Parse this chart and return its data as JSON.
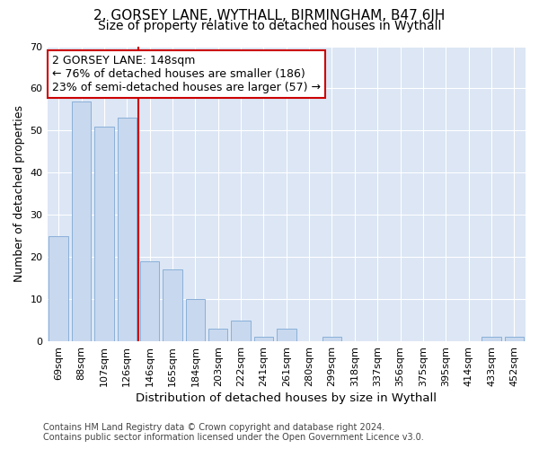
{
  "title": "2, GORSEY LANE, WYTHALL, BIRMINGHAM, B47 6JH",
  "subtitle": "Size of property relative to detached houses in Wythall",
  "xlabel": "Distribution of detached houses by size in Wythall",
  "ylabel": "Number of detached properties",
  "categories": [
    "69sqm",
    "88sqm",
    "107sqm",
    "126sqm",
    "146sqm",
    "165sqm",
    "184sqm",
    "203sqm",
    "222sqm",
    "241sqm",
    "261sqm",
    "280sqm",
    "299sqm",
    "318sqm",
    "337sqm",
    "356sqm",
    "375sqm",
    "395sqm",
    "414sqm",
    "433sqm",
    "452sqm"
  ],
  "values": [
    25,
    57,
    51,
    53,
    19,
    17,
    10,
    3,
    5,
    1,
    3,
    0,
    1,
    0,
    0,
    0,
    0,
    0,
    0,
    1,
    1
  ],
  "bar_color": "#c8d8ee",
  "bar_edge_color": "#8ab0d8",
  "vline_x_index": 4,
  "vline_color": "#cc0000",
  "annotation_text": "2 GORSEY LANE: 148sqm\n← 76% of detached houses are smaller (186)\n23% of semi-detached houses are larger (57) →",
  "annotation_box_color": "#ffffff",
  "annotation_box_edge_color": "#cc0000",
  "ylim": [
    0,
    70
  ],
  "yticks": [
    0,
    10,
    20,
    30,
    40,
    50,
    60,
    70
  ],
  "plot_bg_color": "#dce6f5",
  "fig_bg_color": "#ffffff",
  "grid_color": "#ffffff",
  "footer_text": "Contains HM Land Registry data © Crown copyright and database right 2024.\nContains public sector information licensed under the Open Government Licence v3.0.",
  "title_fontsize": 11,
  "subtitle_fontsize": 10,
  "xlabel_fontsize": 9.5,
  "ylabel_fontsize": 9,
  "tick_fontsize": 8,
  "annotation_fontsize": 9,
  "footer_fontsize": 7
}
